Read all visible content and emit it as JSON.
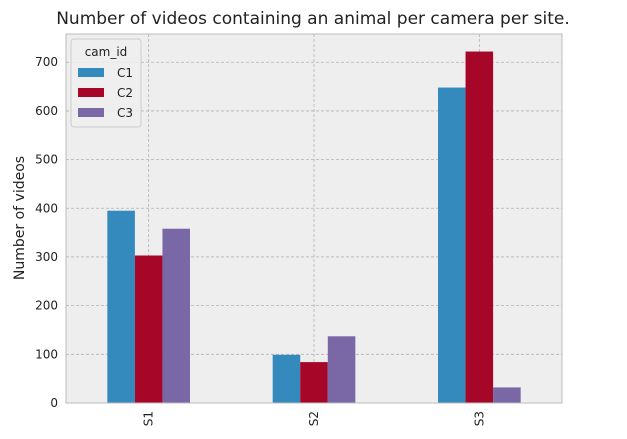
{
  "chart_data": {
    "type": "bar",
    "title": "Number of videos containing an animal per camera per site.",
    "xlabel": "",
    "ylabel": "Number of videos",
    "categories": [
      "S1",
      "S2",
      "S3"
    ],
    "series": [
      {
        "name": "C1",
        "color": "#348ABD",
        "values": [
          395,
          99,
          648
        ]
      },
      {
        "name": "C2",
        "color": "#A60628",
        "values": [
          303,
          84,
          722
        ]
      },
      {
        "name": "C3",
        "color": "#7A68A6",
        "values": [
          358,
          137,
          32
        ]
      }
    ],
    "ylim": [
      0,
      758
    ],
    "yticks": [
      0,
      100,
      200,
      300,
      400,
      500,
      600,
      700
    ],
    "grid": true,
    "legend": {
      "title": "cam_id",
      "placement": "top-left"
    },
    "colors": {
      "plot_background": "#EEEEEE",
      "grid": "#B2B2B2",
      "frame": "#BCBCBC"
    }
  }
}
